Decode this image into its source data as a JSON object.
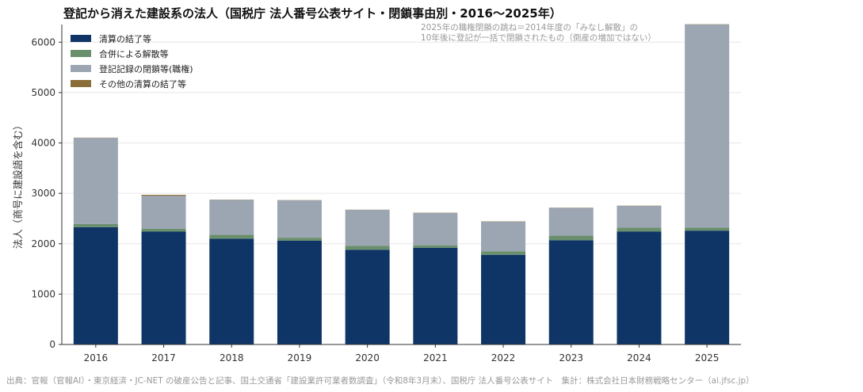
{
  "chart_data": {
    "type": "bar",
    "stacked": true,
    "title": "登記から消えた建設系の法人（国税庁 法人番号公表サイト・閉鎖事由別・2016〜2025年）",
    "ylabel": "法人（商号に建設語を含む）",
    "xlabel": "",
    "categories": [
      "2016",
      "2017",
      "2018",
      "2019",
      "2020",
      "2021",
      "2022",
      "2023",
      "2024",
      "2025"
    ],
    "ylim": [
      0,
      6350
    ],
    "yticks": [
      0,
      1000,
      2000,
      3000,
      4000,
      5000,
      6000
    ],
    "grid": "y",
    "legend_position": "top-left",
    "series": [
      {
        "name": "清算の結了等",
        "color": "#0f3567",
        "values": [
          2330,
          2240,
          2100,
          2060,
          1880,
          1920,
          1780,
          2070,
          2240,
          2260
        ]
      },
      {
        "name": "合併による解散等",
        "color": "#6a8f6d",
        "values": [
          60,
          60,
          80,
          60,
          80,
          50,
          70,
          90,
          80,
          60
        ]
      },
      {
        "name": "登記記録の閉鎖等(職権)",
        "color": "#9ba6b2",
        "values": [
          1710,
          650,
          690,
          740,
          710,
          640,
          590,
          550,
          430,
          4030
        ]
      },
      {
        "name": "その他の清算の結了等",
        "color": "#8b6d3a",
        "values": [
          5,
          20,
          5,
          5,
          5,
          5,
          5,
          5,
          5,
          5
        ]
      }
    ],
    "annotation": [
      "2025年の職権閉鎖の跳ね＝2014年度の「みなし解散」の",
      "10年後に登記が一括で閉鎖されたもの（倒産の増加ではない）"
    ],
    "source": "出典：官報（官報AI）・東京経済・JC-NET の破産公告と記事、国土交通省「建設業許可業者数調査」（令和8年3月末）、国税庁 法人番号公表サイト　集計：株式会社日本財務戦略センター（ai.jfsc.jp）"
  }
}
